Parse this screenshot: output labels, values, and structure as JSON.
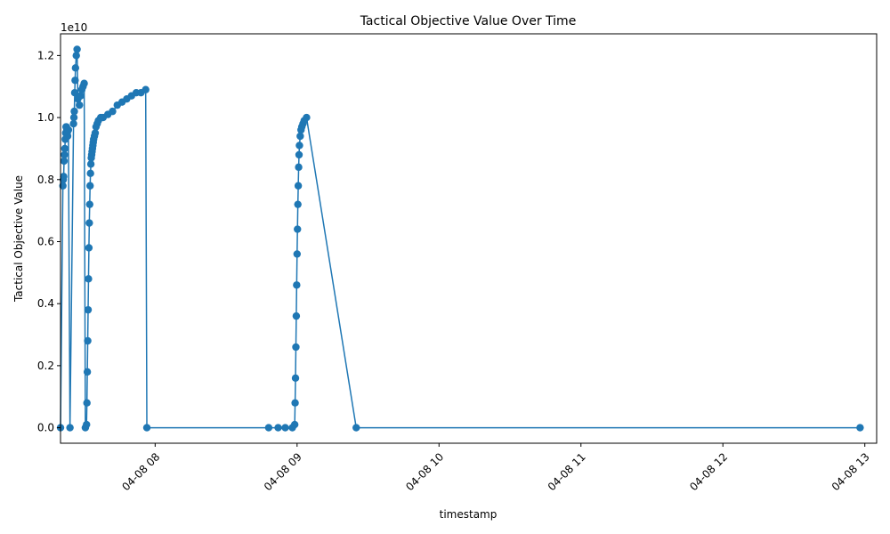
{
  "colors": {
    "series": "#1f77b4",
    "axis": "#000000",
    "background": "#ffffff"
  },
  "chart_data": {
    "type": "line",
    "title": "Tactical Objective Value Over Time",
    "xlabel": "timestamp",
    "ylabel": "Tactical Objective Value",
    "y_offset_label": "1e10",
    "marker": "circle",
    "grid": false,
    "legend": "none",
    "xlim": [
      "04-08 07:20",
      "04-08 13:05"
    ],
    "ylim": [
      -0.05,
      1.27
    ],
    "y_unit_multiplier": "1e10",
    "xticks": [
      "04-08 08",
      "04-08 09",
      "04-08 10",
      "04-08 11",
      "04-08 12",
      "04-08 13"
    ],
    "yticks": [
      "0.0",
      "0.2",
      "0.4",
      "0.6",
      "0.8",
      "1.0",
      "1.2"
    ],
    "series": [
      {
        "x": [
          "04-08 07:20:00",
          "04-08 07:21:00",
          "04-08 07:21:10",
          "04-08 07:21:20",
          "04-08 07:21:30",
          "04-08 07:21:40",
          "04-08 07:21:50",
          "04-08 07:22:00",
          "04-08 07:22:10",
          "04-08 07:22:20",
          "04-08 07:22:30",
          "04-08 07:22:40",
          "04-08 07:22:50",
          "04-08 07:23:00",
          "04-08 07:23:20",
          "04-08 07:24:00",
          "04-08 07:25:30",
          "04-08 07:25:40",
          "04-08 07:25:50",
          "04-08 07:26:00",
          "04-08 07:26:10",
          "04-08 07:26:20",
          "04-08 07:26:40",
          "04-08 07:27:00",
          "04-08 07:27:20",
          "04-08 07:28:00",
          "04-08 07:28:30",
          "04-08 07:29:00",
          "04-08 07:29:30",
          "04-08 07:30:00",
          "04-08 07:30:30",
          "04-08 07:31:00",
          "04-08 07:31:10",
          "04-08 07:31:20",
          "04-08 07:31:30",
          "04-08 07:31:40",
          "04-08 07:31:50",
          "04-08 07:32:00",
          "04-08 07:32:10",
          "04-08 07:32:20",
          "04-08 07:32:30",
          "04-08 07:32:40",
          "04-08 07:32:50",
          "04-08 07:33:00",
          "04-08 07:33:10",
          "04-08 07:33:20",
          "04-08 07:33:30",
          "04-08 07:33:40",
          "04-08 07:33:50",
          "04-08 07:34:00",
          "04-08 07:34:20",
          "04-08 07:34:40",
          "04-08 07:35:00",
          "04-08 07:35:30",
          "04-08 07:36:00",
          "04-08 07:37:00",
          "04-08 07:38:00",
          "04-08 07:40:00",
          "04-08 07:42:00",
          "04-08 07:44:00",
          "04-08 07:46:00",
          "04-08 07:48:00",
          "04-08 07:50:00",
          "04-08 07:52:00",
          "04-08 07:54:00",
          "04-08 07:56:00",
          "04-08 07:56:30",
          "04-08 08:48:00",
          "04-08 08:52:00",
          "04-08 08:55:00",
          "04-08 08:58:00",
          "04-08 08:59:00",
          "04-08 08:59:10",
          "04-08 08:59:20",
          "04-08 08:59:30",
          "04-08 08:59:40",
          "04-08 08:59:50",
          "04-08 09:00:00",
          "04-08 09:00:10",
          "04-08 09:00:20",
          "04-08 09:00:30",
          "04-08 09:00:40",
          "04-08 09:00:50",
          "04-08 09:01:00",
          "04-08 09:01:20",
          "04-08 09:01:40",
          "04-08 09:02:00",
          "04-08 09:02:30",
          "04-08 09:03:00",
          "04-08 09:04:00",
          "04-08 09:25:00",
          "04-08 12:58:00"
        ],
        "y": [
          0.0,
          0.78,
          0.8,
          0.81,
          0.86,
          0.88,
          0.9,
          0.93,
          0.95,
          0.97,
          0.97,
          0.96,
          0.95,
          0.94,
          0.96,
          0.0,
          0.98,
          1.0,
          1.02,
          1.08,
          1.12,
          1.16,
          1.2,
          1.22,
          1.06,
          1.04,
          1.07,
          1.09,
          1.1,
          1.11,
          0.0,
          0.01,
          0.08,
          0.18,
          0.28,
          0.38,
          0.48,
          0.58,
          0.66,
          0.72,
          0.78,
          0.82,
          0.85,
          0.87,
          0.88,
          0.89,
          0.9,
          0.91,
          0.92,
          0.93,
          0.94,
          0.95,
          0.97,
          0.98,
          0.99,
          1.0,
          1.0,
          1.01,
          1.02,
          1.04,
          1.05,
          1.06,
          1.07,
          1.08,
          1.08,
          1.09,
          0.0,
          0.0,
          0.0,
          0.0,
          0.0,
          0.01,
          0.08,
          0.16,
          0.26,
          0.36,
          0.46,
          0.56,
          0.64,
          0.72,
          0.78,
          0.84,
          0.88,
          0.91,
          0.94,
          0.96,
          0.97,
          0.98,
          0.99,
          1.0,
          0.0,
          0.0
        ]
      }
    ]
  }
}
